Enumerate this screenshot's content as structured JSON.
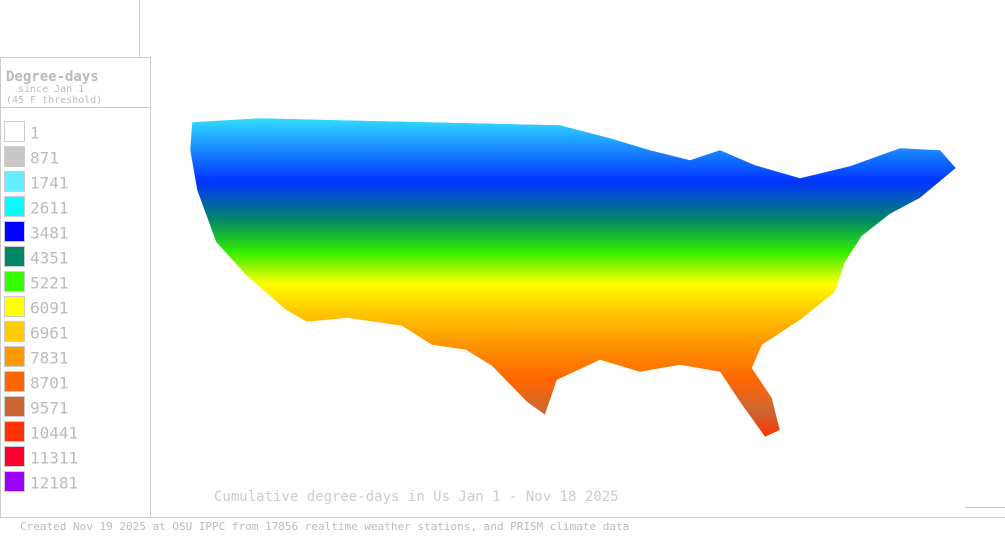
{
  "legend": {
    "title": "Degree-days",
    "subtitle": "since Jan 1",
    "threshold": "(45 F threshold)",
    "items": [
      {
        "value": 1,
        "color": "#ffffff"
      },
      {
        "value": 871,
        "color": "#c8c8c8"
      },
      {
        "value": 1741,
        "color": "#66eeff"
      },
      {
        "value": 2611,
        "color": "#00ffff"
      },
      {
        "value": 3481,
        "color": "#0000ff"
      },
      {
        "value": 4351,
        "color": "#008866"
      },
      {
        "value": 5221,
        "color": "#33ff00"
      },
      {
        "value": 6091,
        "color": "#ffff00"
      },
      {
        "value": 6961,
        "color": "#ffcc00"
      },
      {
        "value": 7831,
        "color": "#ff9900"
      },
      {
        "value": 8701,
        "color": "#ff6600"
      },
      {
        "value": 9571,
        "color": "#cc6633"
      },
      {
        "value": 10441,
        "color": "#ff3300"
      },
      {
        "value": 11311,
        "color": "#ff0033"
      },
      {
        "value": 12181,
        "color": "#9900ff"
      }
    ]
  },
  "caption": "Cumulative degree-days in Us  Jan 1 - Nov 18 2025",
  "footer": "Created Nov 19 2025 at OSU IPPC from 17856 realtime weather stations, and PRISM climate data"
}
